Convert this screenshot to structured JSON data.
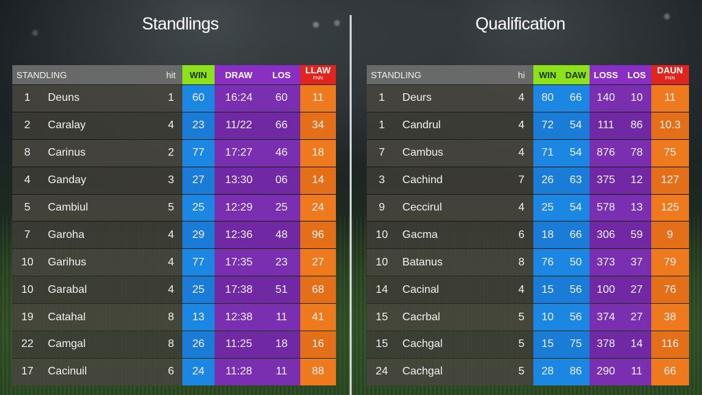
{
  "left": {
    "title": "Standlings",
    "headers": [
      "STANDLING",
      "hit",
      "WIN",
      "DRAW",
      "LOS",
      "LLAW"
    ],
    "header_sub": "FNN",
    "rows": [
      [
        "1",
        "Deuns",
        "1",
        "60",
        "16:24",
        "60",
        "11"
      ],
      [
        "2",
        "Caralay",
        "4",
        "23",
        "11/22",
        "66",
        "34"
      ],
      [
        "8",
        "Carinus",
        "2",
        "77",
        "17:27",
        "46",
        "18"
      ],
      [
        "4",
        "Ganday",
        "3",
        "27",
        "13:30",
        "06",
        "14"
      ],
      [
        "5",
        "Cambiul",
        "5",
        "25",
        "12:29",
        "25",
        "24"
      ],
      [
        "7",
        "Garoha",
        "4",
        "29",
        "12:36",
        "48",
        "96"
      ],
      [
        "10",
        "Garihus",
        "4",
        "77",
        "17:35",
        "23",
        "27"
      ],
      [
        "10",
        "Garabal",
        "4",
        "25",
        "17:38",
        "51",
        "68"
      ],
      [
        "19",
        "Catahal",
        "8",
        "13",
        "12:38",
        "11",
        "41"
      ],
      [
        "22",
        "Camgal",
        "8",
        "26",
        "11:25",
        "18",
        "16"
      ],
      [
        "17",
        "Cacinuil",
        "6",
        "24",
        "11:28",
        "11",
        "88"
      ]
    ]
  },
  "right": {
    "title": "Qualification",
    "headers": [
      "STANDLING",
      "hi",
      "WIN",
      "DAW",
      "LOSS",
      "LOS",
      "DAUN"
    ],
    "header_sub": "FNN",
    "rows": [
      [
        "1",
        "Deurs",
        "4",
        "80",
        "66",
        "140",
        "10",
        "11"
      ],
      [
        "1",
        "Candrul",
        "4",
        "72",
        "54",
        "111",
        "86",
        "10.3"
      ],
      [
        "7",
        "Cambus",
        "4",
        "71",
        "54",
        "876",
        "78",
        "75"
      ],
      [
        "3",
        "Cachind",
        "7",
        "26",
        "63",
        "375",
        "12",
        "127"
      ],
      [
        "9",
        "Ceccirul",
        "4",
        "25",
        "54",
        "578",
        "13",
        "125"
      ],
      [
        "10",
        "Gacma",
        "6",
        "18",
        "66",
        "306",
        "59",
        "9"
      ],
      [
        "10",
        "Batanus",
        "8",
        "76",
        "50",
        "373",
        "37",
        "79"
      ],
      [
        "14",
        "Cacinal",
        "4",
        "15",
        "56",
        "100",
        "27",
        "76"
      ],
      [
        "15",
        "Cacrbal",
        "5",
        "10",
        "56",
        "374",
        "27",
        "38"
      ],
      [
        "15",
        "Cachgal",
        "5",
        "15",
        "75",
        "378",
        "14",
        "116"
      ],
      [
        "24",
        "Cachgal",
        "5",
        "28",
        "86",
        "290",
        "11",
        "66"
      ]
    ]
  },
  "colors": {
    "win_header": "#8ee21c",
    "win": "#1c86e3",
    "purple": "#7a2fb0",
    "last_header": "#e0251f",
    "last": "#ef7a1e"
  }
}
